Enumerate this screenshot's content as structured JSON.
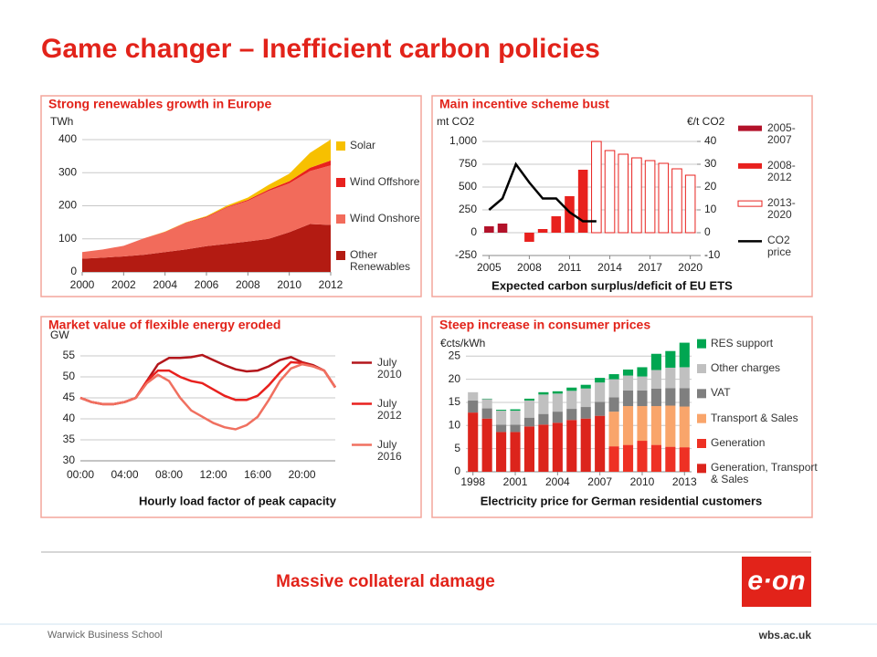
{
  "title": "Game changer – Inefficient carbon policies",
  "chart_data": [
    {
      "type": "area",
      "title": "Strong renewables growth in Europe",
      "ylabel": "TWh",
      "x": [
        2000,
        2001,
        2002,
        2003,
        2004,
        2005,
        2006,
        2007,
        2008,
        2009,
        2010,
        2011,
        2012
      ],
      "xlim": [
        2000,
        2012
      ],
      "xticks": [
        2000,
        2002,
        2004,
        2006,
        2008,
        2010,
        2012
      ],
      "ylim": [
        0,
        400
      ],
      "yticks": [
        0,
        100,
        200,
        300,
        400
      ],
      "grid": true,
      "series": [
        {
          "name": "Other Renewables",
          "color": "#b31b12",
          "values": [
            40,
            43,
            47,
            52,
            60,
            68,
            78,
            85,
            92,
            100,
            120,
            145,
            142
          ]
        },
        {
          "name": "Wind Onshore",
          "color": "#f26b5b",
          "values": [
            20,
            25,
            32,
            50,
            60,
            80,
            87,
            110,
            123,
            145,
            148,
            160,
            180
          ]
        },
        {
          "name": "Wind Offshore",
          "color": "#e8211e",
          "values": [
            0,
            0,
            0,
            0,
            1,
            1,
            2,
            2,
            3,
            4,
            6,
            10,
            15
          ]
        },
        {
          "name": "Solar",
          "color": "#f7c000",
          "values": [
            0,
            0,
            0,
            0,
            1,
            1,
            2,
            4,
            7,
            14,
            23,
            45,
            63
          ]
        }
      ]
    },
    {
      "type": "bar",
      "title": "Main incentive scheme bust",
      "ylabel": "mt CO2",
      "y2label": "€/t CO2",
      "xlabel": "Expected carbon surplus/deficit of EU ETS",
      "x": [
        2005,
        2006,
        2007,
        2008,
        2009,
        2010,
        2011,
        2012,
        2013,
        2014,
        2015,
        2016,
        2017,
        2018,
        2019,
        2020
      ],
      "xlim": [
        2004.5,
        2020.5
      ],
      "xticks": [
        2005,
        2008,
        2011,
        2014,
        2017,
        2020
      ],
      "ylim": [
        -250,
        1000
      ],
      "yticks": [
        -250,
        0,
        250,
        500,
        750,
        {
          "value": 1000,
          "label": "1,000"
        }
      ],
      "y2lim": [
        -10,
        40
      ],
      "y2ticks": [
        -10,
        0,
        10,
        20,
        30,
        40
      ],
      "grid": true,
      "series": [
        {
          "name": "2005-2007",
          "color": "#b3122a",
          "values": [
            70,
            100,
            null,
            null,
            null,
            null,
            null,
            null,
            null,
            null,
            null,
            null,
            null,
            null,
            null,
            null
          ]
        },
        {
          "name": "2008-2012",
          "color": "#e8211e",
          "values": [
            null,
            null,
            null,
            -100,
            40,
            180,
            400,
            690,
            null,
            null,
            null,
            null,
            null,
            null,
            null,
            null
          ]
        },
        {
          "name": "2013-2020",
          "color": "#e8211e",
          "outline": true,
          "values": [
            null,
            null,
            null,
            null,
            null,
            null,
            null,
            null,
            1000,
            900,
            860,
            820,
            790,
            760,
            700,
            630
          ]
        },
        {
          "name": "CO2 price",
          "color": "#000000",
          "type": "line",
          "axis": "y2",
          "values": [
            10,
            15,
            30,
            22,
            15,
            15,
            9,
            5,
            5,
            null,
            null,
            null,
            null,
            null,
            null,
            null
          ]
        }
      ]
    },
    {
      "type": "line",
      "title": "Market value of flexible energy eroded",
      "ylabel": "GW",
      "xlabel": "Hourly load factor of peak capacity",
      "categories": [
        "00:00",
        null,
        null,
        null,
        "04:00",
        null,
        null,
        null,
        "08:00",
        null,
        null,
        null,
        "12:00",
        null,
        null,
        null,
        "16:00",
        null,
        null,
        null,
        "20:00",
        null,
        null,
        null
      ],
      "ylim": [
        30,
        55
      ],
      "yticks": [
        30,
        35,
        40,
        45,
        50,
        55
      ],
      "grid": true,
      "series": [
        {
          "name": "July 2010",
          "color": "#b3161b",
          "values": [
            45,
            44,
            43.5,
            43.5,
            44,
            45,
            49,
            53,
            54.5,
            54.5,
            54.7,
            55.2,
            54,
            52.8,
            51.8,
            51.3,
            51.5,
            52.5,
            54,
            54.7,
            53.5,
            52.8,
            51.5,
            47.5
          ]
        },
        {
          "name": "July 2012",
          "color": "#e8211e",
          "values": [
            45,
            44,
            43.5,
            43.5,
            44,
            45,
            49,
            51.5,
            51.5,
            50,
            49,
            48.5,
            47,
            45.5,
            44.5,
            44.5,
            45.5,
            48,
            51,
            53.5,
            53.3,
            52.5,
            51.5,
            47.5
          ]
        },
        {
          "name": "July 2016",
          "color": "#f07060",
          "values": [
            45,
            44,
            43.5,
            43.5,
            44,
            45,
            48.5,
            50.5,
            49,
            45,
            42,
            40.5,
            39,
            38,
            37.5,
            38.5,
            40.5,
            44.5,
            49,
            52,
            53,
            52.5,
            51.5,
            47.5
          ]
        }
      ]
    },
    {
      "type": "bar",
      "stacked": true,
      "title": "Steep increase in consumer prices",
      "ylabel": "€cts/kWh",
      "xlabel": "Electricity price for German residential customers",
      "x": [
        1998,
        1999,
        2000,
        2001,
        2002,
        2003,
        2004,
        2005,
        2006,
        2007,
        2008,
        2009,
        2010,
        2011,
        2012,
        2013
      ],
      "xlim": [
        1997.5,
        2013.5
      ],
      "xticks": [
        1998,
        2001,
        2004,
        2007,
        2010,
        2013
      ],
      "ylim": [
        0,
        29
      ],
      "yticks": [
        0,
        5,
        10,
        15,
        20,
        25
      ],
      "grid": true,
      "series": [
        {
          "name": "Generation, Transport & Sales",
          "color": "#dc241c",
          "values": [
            12.8,
            11.5,
            8.6,
            8.6,
            9.8,
            10.2,
            10.6,
            11.2,
            11.5,
            12.1,
            null,
            null,
            null,
            null,
            null,
            null
          ]
        },
        {
          "name": "Generation",
          "color": "#ee3124",
          "values": [
            null,
            null,
            null,
            null,
            null,
            null,
            null,
            null,
            null,
            null,
            5.5,
            5.8,
            6.7,
            5.8,
            5.4,
            5.3
          ]
        },
        {
          "name": "Transport & Sales",
          "color": "#f9a56b",
          "values": [
            null,
            null,
            null,
            null,
            null,
            null,
            null,
            null,
            null,
            null,
            7.5,
            8.4,
            7.5,
            8.4,
            8.9,
            8.8
          ]
        },
        {
          "name": "VAT",
          "color": "#7f7f7f",
          "values": [
            2.6,
            2.2,
            1.6,
            1.6,
            1.9,
            2.3,
            2.4,
            2.4,
            2.5,
            3.0,
            3.1,
            3.4,
            3.4,
            3.8,
            3.8,
            4.0
          ]
        },
        {
          "name": "Other charges",
          "color": "#c0c0c0",
          "values": [
            1.8,
            2.0,
            3.0,
            3.0,
            3.7,
            4.2,
            3.9,
            3.9,
            4.0,
            4.2,
            3.9,
            3.2,
            3.0,
            4.0,
            4.4,
            4.5
          ]
        },
        {
          "name": "RES support",
          "color": "#00a651",
          "values": [
            0,
            0.1,
            0.2,
            0.3,
            0.4,
            0.5,
            0.5,
            0.7,
            0.8,
            1.0,
            1.1,
            1.3,
            2.0,
            3.5,
            3.6,
            5.3
          ]
        }
      ]
    }
  ],
  "tagline": "Massive collateral damage",
  "logo": "e·on",
  "footer": {
    "left": "Warwick Business School",
    "right": "wbs.ac.uk"
  }
}
